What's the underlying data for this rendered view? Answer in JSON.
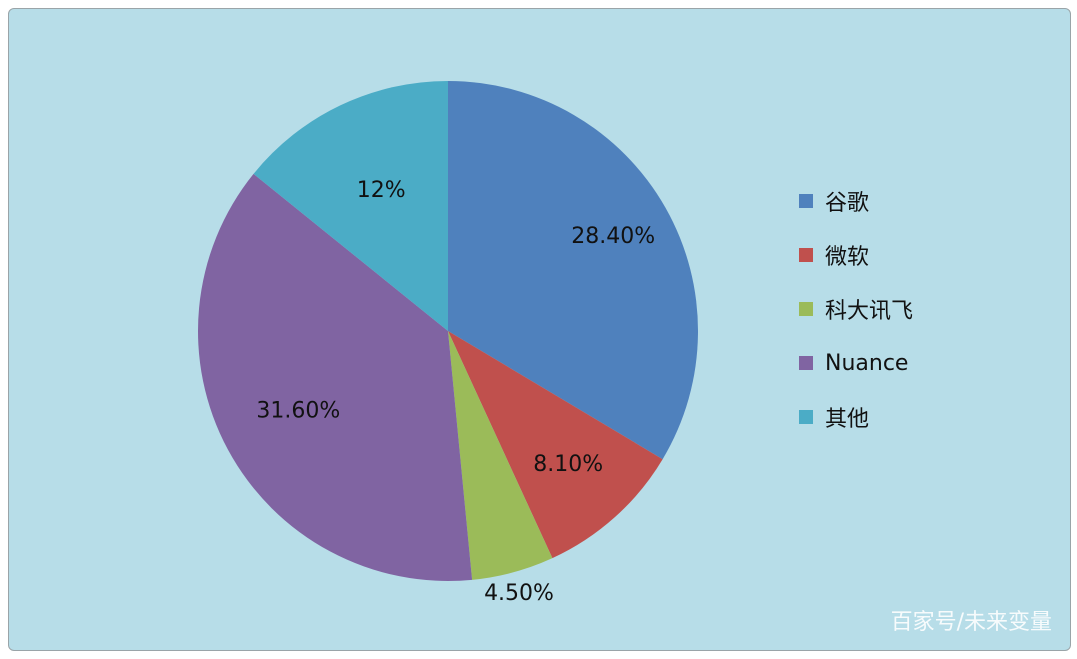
{
  "chart_data": {
    "type": "pie",
    "categories": [
      "谷歌",
      "微软",
      "科大讯飞",
      "Nuance",
      "其他"
    ],
    "values": [
      28.4,
      8.1,
      4.5,
      31.6,
      12
    ],
    "value_labels": [
      "28.40%",
      "8.10%",
      "4.50%",
      "31.60%",
      "12%"
    ],
    "colors": [
      "#4f81bd",
      "#c0504d",
      "#9bbb59",
      "#8064a2",
      "#4bacc6"
    ],
    "legend_position": "right",
    "start_angle": "12 o'clock, clockwise"
  },
  "legend": {
    "items": [
      {
        "label": "谷歌",
        "color": "#4f81bd"
      },
      {
        "label": "微软",
        "color": "#c0504d"
      },
      {
        "label": "科大讯飞",
        "color": "#9bbb59"
      },
      {
        "label": "Nuance",
        "color": "#8064a2"
      },
      {
        "label": "其他",
        "color": "#4bacc6"
      }
    ]
  },
  "watermark": "百家号/未来变量",
  "background_color": "#b7dde8"
}
